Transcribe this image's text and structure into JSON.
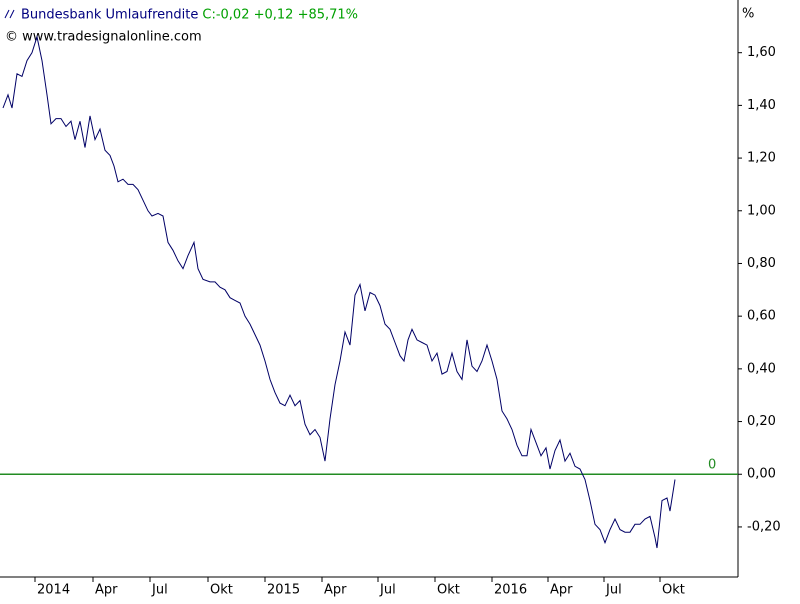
{
  "chart_data": {
    "type": "line",
    "title": "Bundesbank Umlaufrendite",
    "subtitle": "C:-0,02 +0,12 +85,71%",
    "annotations": [
      "© www.tradesignalonline.com"
    ],
    "y_unit": "%",
    "color": "#000066",
    "title_color": "#00007f",
    "subtitle_color": "#00a000",
    "reference_line": {
      "value": 0,
      "label": "0",
      "color": "#228b22"
    },
    "xlim": [
      0,
      738
    ],
    "xticks": [
      {
        "value": 35,
        "label": "2014"
      },
      {
        "value": 93,
        "label": "Apr"
      },
      {
        "value": 150,
        "label": "Jul"
      },
      {
        "value": 208,
        "label": "Okt"
      },
      {
        "value": 265,
        "label": "2015"
      },
      {
        "value": 322,
        "label": "Apr"
      },
      {
        "value": 378,
        "label": "Jul"
      },
      {
        "value": 435,
        "label": "Okt"
      },
      {
        "value": 492,
        "label": "2016"
      },
      {
        "value": 548,
        "label": "Apr"
      },
      {
        "value": 604,
        "label": "Jul"
      },
      {
        "value": 660,
        "label": "Okt"
      }
    ],
    "ylim": [
      -0.39,
      1.8
    ],
    "yticks": [
      {
        "value": 1.6,
        "label": "1,60"
      },
      {
        "value": 1.4,
        "label": "1,40"
      },
      {
        "value": 1.2,
        "label": "1,20"
      },
      {
        "value": 1.0,
        "label": "1,00"
      },
      {
        "value": 0.8,
        "label": "0,80"
      },
      {
        "value": 0.6,
        "label": "0,60"
      },
      {
        "value": 0.4,
        "label": "0,40"
      },
      {
        "value": 0.2,
        "label": "0,20"
      },
      {
        "value": 0,
        "label": "0,00"
      },
      {
        "value": -0.2,
        "label": "-0,20"
      }
    ],
    "grid": false,
    "x": [
      3,
      8,
      12,
      17,
      22,
      27,
      32,
      37,
      42,
      47,
      51,
      56,
      61,
      66,
      71,
      75,
      80,
      85,
      90,
      95,
      100,
      105,
      110,
      114,
      118,
      123,
      128,
      133,
      138,
      143,
      148,
      152,
      158,
      163,
      168,
      173,
      178,
      183,
      188,
      194,
      198,
      203,
      210,
      215,
      220,
      225,
      230,
      235,
      240,
      245,
      250,
      255,
      260,
      265,
      270,
      275,
      280,
      285,
      290,
      295,
      300,
      305,
      310,
      315,
      320,
      325,
      330,
      335,
      340,
      345,
      350,
      355,
      360,
      365,
      370,
      375,
      380,
      385,
      390,
      395,
      400,
      404,
      408,
      412,
      417,
      422,
      427,
      432,
      437,
      442,
      447,
      452,
      457,
      462,
      467,
      472,
      477,
      482,
      487,
      492,
      497,
      502,
      507,
      512,
      517,
      522,
      527,
      531,
      536,
      541,
      546,
      550,
      555,
      560,
      565,
      570,
      575,
      580,
      585,
      590,
      595,
      600,
      605,
      610,
      615,
      620,
      625,
      630,
      635,
      640,
      645,
      650,
      655,
      657,
      662,
      667,
      670,
      675
    ],
    "values": [
      1.39,
      1.44,
      1.39,
      1.52,
      1.51,
      1.57,
      1.6,
      1.66,
      1.57,
      1.44,
      1.33,
      1.35,
      1.35,
      1.32,
      1.34,
      1.27,
      1.34,
      1.24,
      1.36,
      1.27,
      1.31,
      1.23,
      1.21,
      1.17,
      1.11,
      1.12,
      1.1,
      1.1,
      1.08,
      1.04,
      1.0,
      0.98,
      0.99,
      0.98,
      0.88,
      0.85,
      0.81,
      0.78,
      0.83,
      0.88,
      0.78,
      0.74,
      0.73,
      0.73,
      0.71,
      0.7,
      0.67,
      0.66,
      0.65,
      0.6,
      0.57,
      0.53,
      0.49,
      0.43,
      0.36,
      0.31,
      0.27,
      0.26,
      0.3,
      0.26,
      0.28,
      0.19,
      0.15,
      0.17,
      0.14,
      0.05,
      0.21,
      0.34,
      0.43,
      0.54,
      0.49,
      0.68,
      0.72,
      0.62,
      0.69,
      0.68,
      0.64,
      0.57,
      0.55,
      0.5,
      0.45,
      0.43,
      0.51,
      0.55,
      0.51,
      0.5,
      0.49,
      0.43,
      0.46,
      0.38,
      0.39,
      0.46,
      0.39,
      0.36,
      0.51,
      0.41,
      0.39,
      0.43,
      0.49,
      0.43,
      0.36,
      0.24,
      0.21,
      0.17,
      0.11,
      0.07,
      0.07,
      0.17,
      0.12,
      0.07,
      0.1,
      0.02,
      0.09,
      0.13,
      0.05,
      0.08,
      0.03,
      0.02,
      -0.02,
      -0.1,
      -0.19,
      -0.21,
      -0.26,
      -0.21,
      -0.17,
      -0.21,
      -0.22,
      -0.22,
      -0.19,
      -0.19,
      -0.17,
      -0.16,
      -0.24,
      -0.28,
      -0.1,
      -0.09,
      -0.14,
      -0.02
    ]
  }
}
